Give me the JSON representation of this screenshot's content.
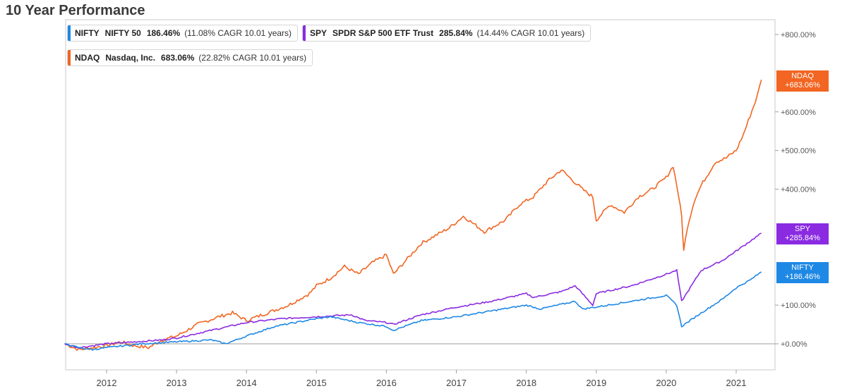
{
  "page": {
    "title": "10 Year Performance"
  },
  "chart_data": {
    "type": "line",
    "title": "10 Year Performance",
    "x_unit": "year",
    "xlim": [
      2011.4,
      2021.55
    ],
    "ylim": [
      -70,
      860
    ],
    "y_ticks": [
      0,
      100,
      400,
      500,
      600,
      800
    ],
    "y_tick_labels": [
      "+0.00%",
      "+100.00%",
      "+400.00%",
      "+500.00%",
      "+600.00%",
      "+800.00%"
    ],
    "x_ticks": [
      2012,
      2013,
      2014,
      2015,
      2016,
      2017,
      2018,
      2019,
      2020,
      2021
    ],
    "x_tick_labels": [
      "2012",
      "2013",
      "2014",
      "2015",
      "2016",
      "2017",
      "2018",
      "2019",
      "2020",
      "2021"
    ],
    "baseline": 0,
    "series": [
      {
        "key": "ndaq",
        "symbol": "NDAQ",
        "name": "Nasdaq, Inc.",
        "return": "683.06%",
        "cagr": "(22.82% CAGR 10.01 years)",
        "badge": [
          "NDAQ",
          "+683.06%"
        ],
        "color": "#f26522",
        "x": [
          2011.4,
          2011.6,
          2011.8,
          2012.0,
          2012.2,
          2012.4,
          2012.6,
          2012.8,
          2013.0,
          2013.3,
          2013.6,
          2013.8,
          2014.0,
          2014.3,
          2014.6,
          2014.9,
          2015.0,
          2015.2,
          2015.4,
          2015.6,
          2015.8,
          2016.0,
          2016.1,
          2016.3,
          2016.5,
          2016.7,
          2016.9,
          2017.1,
          2017.4,
          2017.7,
          2017.9,
          2018.1,
          2018.3,
          2018.5,
          2018.8,
          2018.95,
          2019.0,
          2019.2,
          2019.4,
          2019.6,
          2019.8,
          2020.0,
          2020.1,
          2020.18,
          2020.22,
          2020.25,
          2020.3,
          2020.4,
          2020.5,
          2020.6,
          2020.7,
          2020.85,
          2021.0,
          2021.1,
          2021.2,
          2021.3,
          2021.36
        ],
        "y": [
          0,
          -15,
          -10,
          -5,
          5,
          -5,
          -10,
          10,
          20,
          50,
          70,
          80,
          60,
          80,
          100,
          130,
          150,
          170,
          200,
          180,
          210,
          230,
          180,
          220,
          260,
          280,
          300,
          330,
          290,
          320,
          360,
          380,
          420,
          450,
          400,
          380,
          320,
          360,
          340,
          380,
          400,
          430,
          460,
          380,
          330,
          240,
          300,
          370,
          410,
          440,
          470,
          480,
          500,
          540,
          590,
          640,
          683
        ]
      },
      {
        "key": "spy",
        "symbol": "SPY",
        "name": "SPDR S&P 500 ETF Trust",
        "return": "285.84%",
        "cagr": "(14.44% CAGR 10.01 years)",
        "badge": [
          "SPY",
          "+285.84%"
        ],
        "color": "#8a2be2",
        "x": [
          2011.4,
          2011.6,
          2011.8,
          2012.0,
          2012.4,
          2012.8,
          2013.0,
          2013.5,
          2014.0,
          2014.5,
          2015.0,
          2015.5,
          2015.7,
          2016.0,
          2016.1,
          2016.5,
          2017.0,
          2017.5,
          2018.0,
          2018.1,
          2018.5,
          2018.7,
          2018.95,
          2019.0,
          2019.5,
          2020.0,
          2020.15,
          2020.22,
          2020.5,
          2020.8,
          2021.0,
          2021.36
        ],
        "y": [
          0,
          -10,
          -5,
          0,
          5,
          10,
          15,
          35,
          55,
          65,
          70,
          75,
          60,
          55,
          50,
          75,
          95,
          110,
          130,
          120,
          135,
          150,
          100,
          130,
          150,
          180,
          190,
          110,
          190,
          215,
          240,
          286
        ]
      },
      {
        "key": "nifty",
        "symbol": "NIFTY",
        "name": "NIFTY 50",
        "return": "186.46%",
        "cagr": "(11.08% CAGR 10.01 years)",
        "badge": [
          "NIFTY",
          "+186.46%"
        ],
        "color": "#1e88e5",
        "x": [
          2011.4,
          2011.6,
          2011.8,
          2012.0,
          2012.5,
          2013.0,
          2013.5,
          2013.7,
          2014.0,
          2014.4,
          2015.0,
          2015.2,
          2015.6,
          2016.0,
          2016.1,
          2016.5,
          2017.0,
          2017.5,
          2018.0,
          2018.2,
          2018.7,
          2018.8,
          2019.0,
          2019.5,
          2020.0,
          2020.15,
          2020.22,
          2020.5,
          2020.8,
          2021.0,
          2021.2,
          2021.36
        ],
        "y": [
          0,
          -10,
          -15,
          -10,
          0,
          5,
          10,
          0,
          20,
          45,
          65,
          70,
          55,
          45,
          35,
          60,
          70,
          85,
          100,
          90,
          110,
          90,
          95,
          110,
          125,
          100,
          45,
          80,
          115,
          145,
          165,
          186
        ]
      }
    ]
  }
}
